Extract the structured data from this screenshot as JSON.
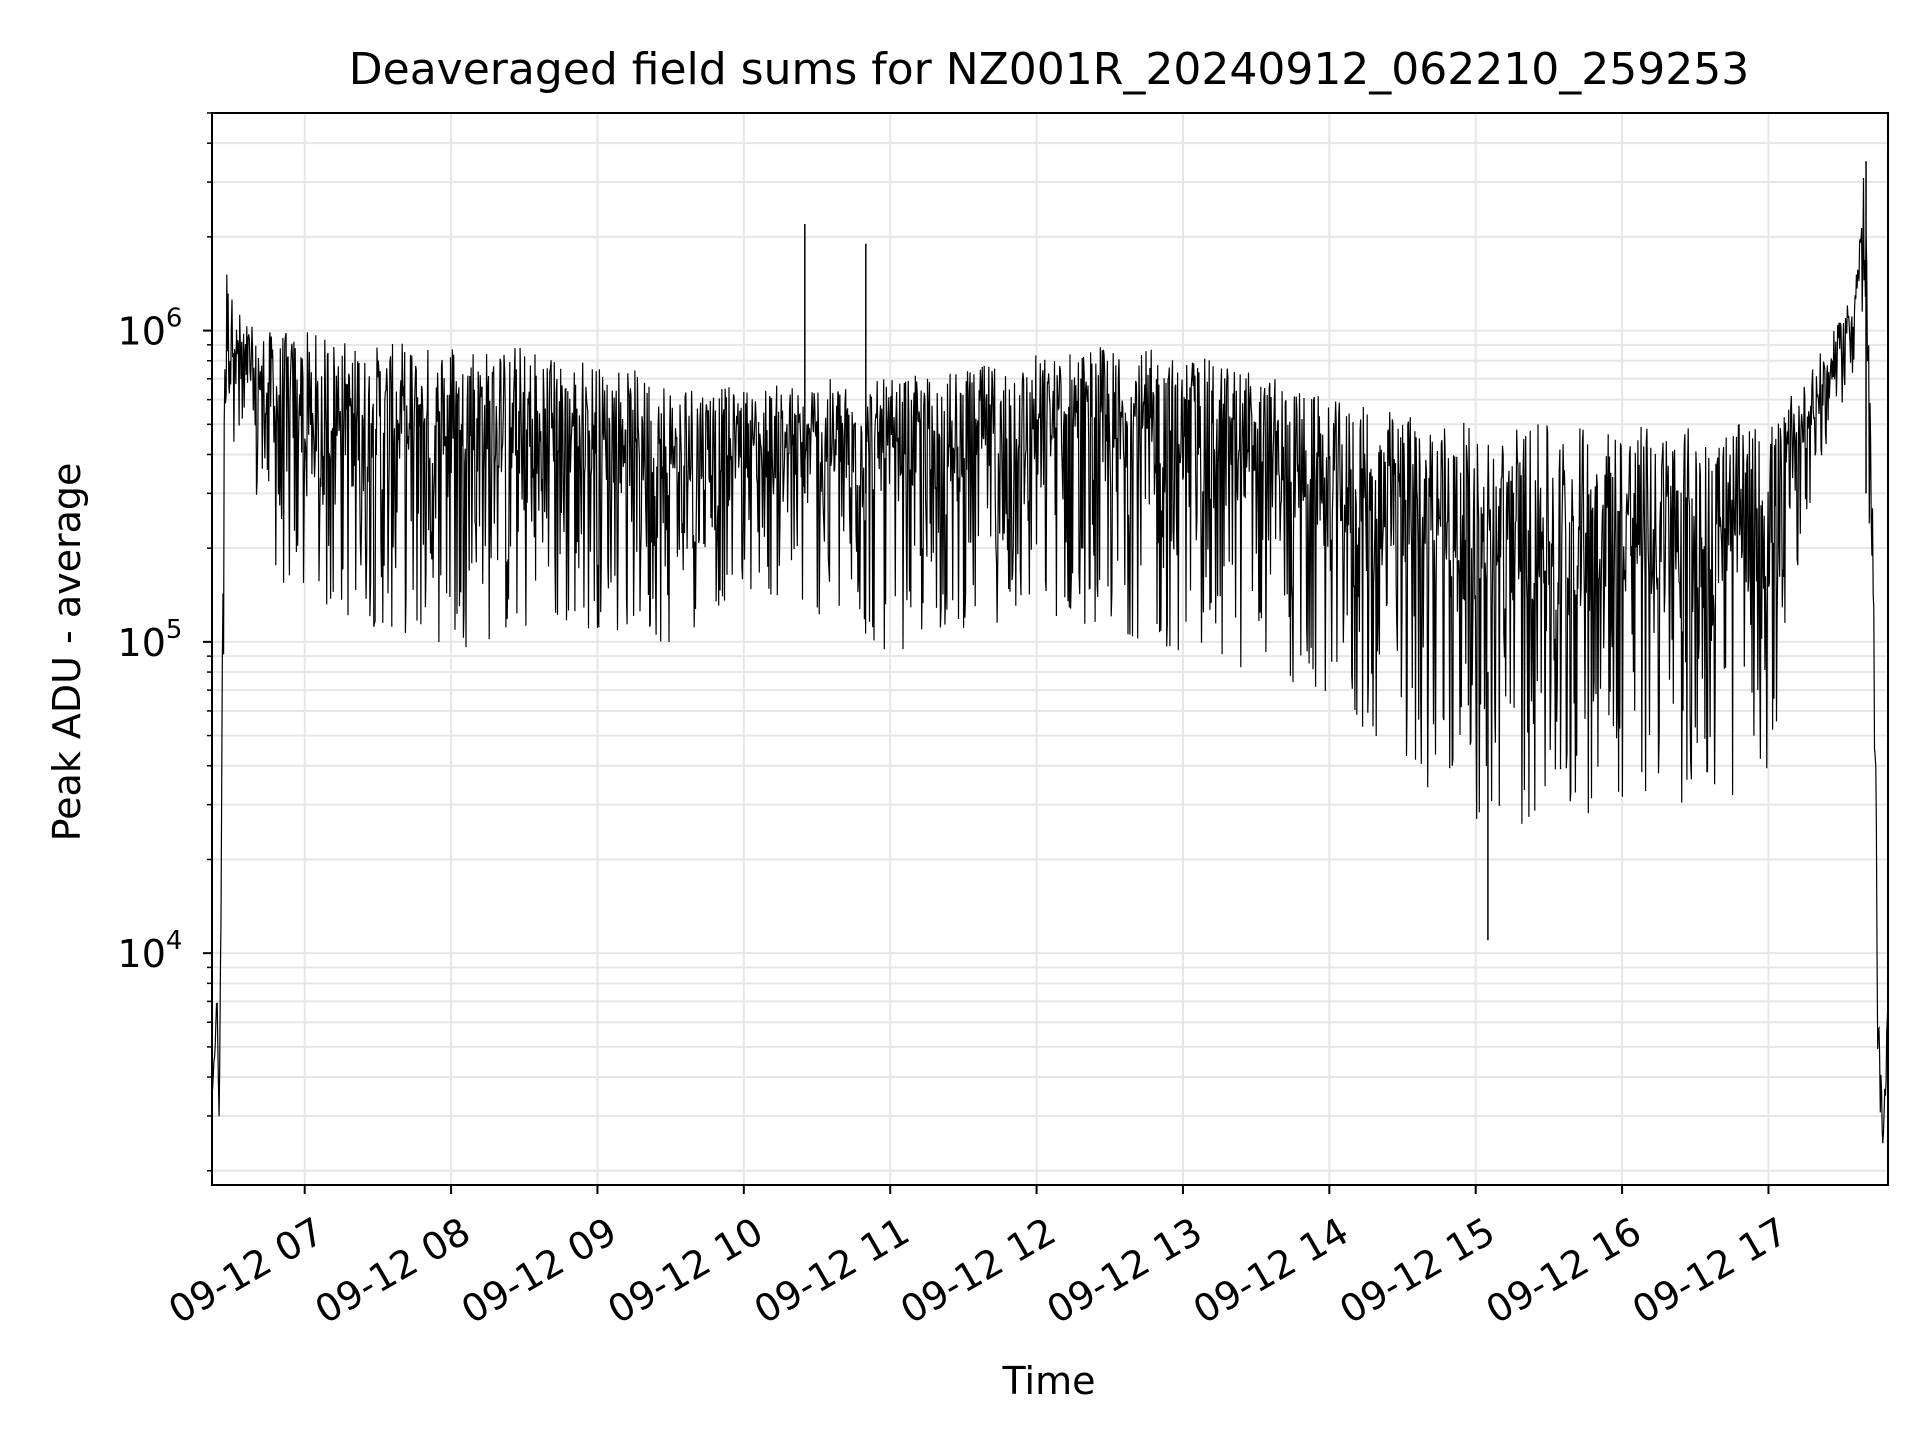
{
  "chart_data": {
    "type": "line",
    "title": "Deaveraged field sums for NZ001R_20240912_062210_259253",
    "xlabel": "Time",
    "ylabel": "Peak ADU - average",
    "yscale": "log",
    "grid": true,
    "legend": "none",
    "line_color": "#000000",
    "grid_color": "#e6e6e6",
    "x_range": [
      "2024-09-12 06:22",
      "2024-09-12 17:49"
    ],
    "ylim": [
      1800,
      5000000
    ],
    "x_ticks": [
      {
        "label": "09-12 07",
        "time": "2024-09-12 07:00"
      },
      {
        "label": "09-12 08",
        "time": "2024-09-12 08:00"
      },
      {
        "label": "09-12 09",
        "time": "2024-09-12 09:00"
      },
      {
        "label": "09-12 10",
        "time": "2024-09-12 10:00"
      },
      {
        "label": "09-12 11",
        "time": "2024-09-12 11:00"
      },
      {
        "label": "09-12 12",
        "time": "2024-09-12 12:00"
      },
      {
        "label": "09-12 13",
        "time": "2024-09-12 13:00"
      },
      {
        "label": "09-12 14",
        "time": "2024-09-12 14:00"
      },
      {
        "label": "09-12 15",
        "time": "2024-09-12 15:00"
      },
      {
        "label": "09-12 16",
        "time": "2024-09-12 16:00"
      },
      {
        "label": "09-12 17",
        "time": "2024-09-12 17:00"
      }
    ],
    "y_ticks": [
      {
        "mantissa": "10",
        "exponent": "4",
        "value": 10000
      },
      {
        "mantissa": "10",
        "exponent": "5",
        "value": 100000
      },
      {
        "mantissa": "10",
        "exponent": "6",
        "value": 1000000
      }
    ],
    "series": [
      {
        "x": [
          "2024-09-12 06:22",
          "2024-09-12 06:23",
          "2024-09-12 06:24",
          "2024-09-12 06:25",
          "2024-09-12 06:27",
          "2024-09-12 06:28",
          "2024-09-12 06:30",
          "2024-09-12 06:32",
          "2024-09-12 06:35",
          "2024-09-12 06:40",
          "2024-09-12 06:45",
          "2024-09-12 06:50",
          "2024-09-12 07:00",
          "2024-09-12 07:30",
          "2024-09-12 08:00",
          "2024-09-12 08:30",
          "2024-09-12 09:00",
          "2024-09-12 09:30",
          "2024-09-12 10:00",
          "2024-09-12 10:30",
          "2024-09-12 11:00",
          "2024-09-12 11:30",
          "2024-09-12 12:00",
          "2024-09-12 12:30",
          "2024-09-12 13:00",
          "2024-09-12 13:30",
          "2024-09-12 14:00",
          "2024-09-12 14:30",
          "2024-09-12 15:00",
          "2024-09-12 15:30",
          "2024-09-12 16:00",
          "2024-09-12 16:30",
          "2024-09-12 17:00",
          "2024-09-12 17:15",
          "2024-09-12 17:30",
          "2024-09-12 17:35",
          "2024-09-12 17:37",
          "2024-09-12 17:39",
          "2024-09-12 17:41",
          "2024-09-12 17:43",
          "2024-09-12 17:45",
          "2024-09-12 17:47",
          "2024-09-12 17:49"
        ],
        "low": [
          3500,
          4500,
          6000,
          2700,
          100000,
          700000,
          500000,
          380000,
          300000,
          250000,
          200000,
          150000,
          120000,
          110000,
          95000,
          100000,
          110000,
          95000,
          150000,
          120000,
          90000,
          110000,
          120000,
          110000,
          90000,
          80000,
          60000,
          40000,
          25000,
          25000,
          30000,
          30000,
          30000,
          250000,
          550000,
          700000,
          900000,
          1000000,
          150000,
          50000,
          3500,
          2500,
          5000
        ],
        "high": [
          3500,
          4500,
          8000,
          2700,
          1000000,
          1600000,
          1300000,
          1200000,
          1100000,
          1000000,
          1000000,
          1000000,
          1000000,
          900000,
          950000,
          900000,
          800000,
          700000,
          650000,
          700000,
          700000,
          750000,
          850000,
          900000,
          850000,
          750000,
          600000,
          550000,
          500000,
          500000,
          500000,
          500000,
          500000,
          700000,
          1100000,
          1400000,
          2000000,
          3500000,
          1200000,
          200000,
          8000,
          2500,
          8000
        ]
      }
    ],
    "annotations": [
      {
        "time": "2024-09-12 10:25",
        "value": 2200000,
        "note": "peak"
      },
      {
        "time": "2024-09-12 10:50",
        "value": 1900000,
        "note": "peak"
      },
      {
        "time": "2024-09-12 15:05",
        "value": 11000,
        "note": "dip"
      },
      {
        "time": "2024-09-12 17:40",
        "value": 3500000,
        "note": "peak"
      }
    ]
  }
}
